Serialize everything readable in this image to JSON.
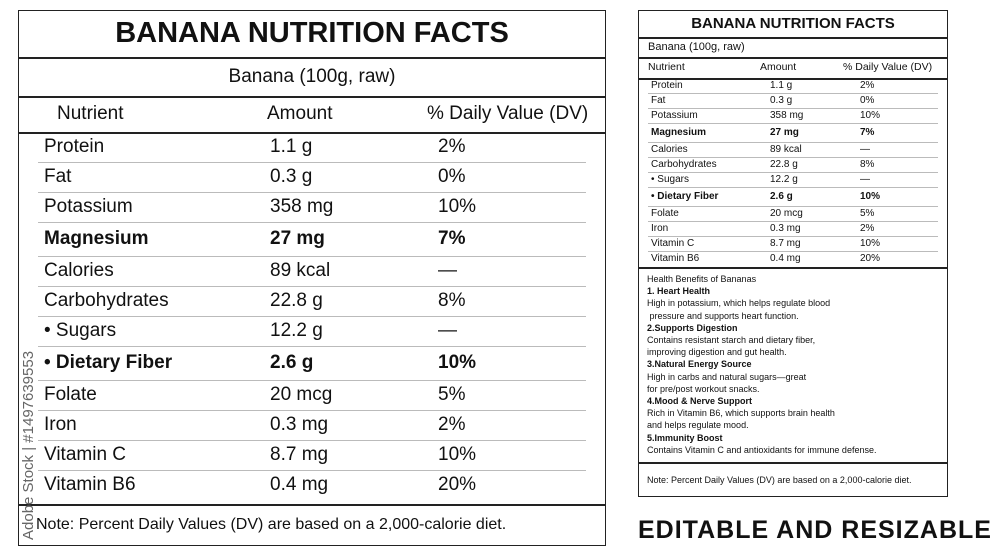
{
  "nutrition": {
    "title": "BANANA NUTRITION FACTS",
    "subtitle": "Banana (100g, raw)",
    "header": [
      "Nutrient",
      "Amount",
      "% Daily Value (DV)"
    ],
    "rows": [
      {
        "nutrient": "Protein",
        "amount": "1.1 g",
        "dv": "2%"
      },
      {
        "nutrient": "Fat",
        "amount": "0.3 g",
        "dv": "0%"
      },
      {
        "nutrient": "Potassium",
        "amount": "358 mg",
        "dv": "10%"
      },
      {
        "nutrient": "Magnesium",
        "amount": "27 mg",
        "dv": "7%",
        "bold": true
      },
      {
        "nutrient": "Calories",
        "amount": "89 kcal",
        "dv": "—"
      },
      {
        "nutrient": "Carbohydrates",
        "amount": "22.8 g",
        "dv": "8%"
      },
      {
        "nutrient": "• Sugars",
        "amount": "12.2 g",
        "dv": "—"
      },
      {
        "nutrient": "• Dietary Fiber",
        "amount": "2.6 g",
        "dv": "10%",
        "bold": true
      },
      {
        "nutrient": "Folate",
        "amount": "20 mcg",
        "dv": "5%"
      },
      {
        "nutrient": "Iron",
        "amount": "0.3 mg",
        "dv": "2%"
      },
      {
        "nutrient": "Vitamin C",
        "amount": "8.7 mg",
        "dv": "10%"
      },
      {
        "nutrient": "Vitamin B6",
        "amount": "0.4 mg",
        "dv": "20%"
      }
    ],
    "note": "Note: Percent Daily Values (DV) are based on a 2,000-calorie diet."
  },
  "benefits": {
    "title": "Health Benefits of Bananas",
    "items": [
      {
        "heading": "1. Heart Health",
        "text": [
          "High in potassium, which helps regulate blood",
          " pressure and supports heart function."
        ]
      },
      {
        "heading": "2.Supports Digestion",
        "text": [
          "Contains resistant starch and dietary fiber,",
          "improving digestion and gut health."
        ]
      },
      {
        "heading": "3.Natural Energy Source",
        "text": [
          "High in carbs and natural sugars—great",
          "for pre/post workout snacks."
        ]
      },
      {
        "heading": "4.Mood & Nerve Support",
        "text": [
          "Rich in Vitamin B6, which supports brain health",
          "and helps regulate mood."
        ]
      },
      {
        "heading": "5.Immunity Boost",
        "text": [
          "Contains Vitamin C and antioxidants for immune defense."
        ]
      }
    ]
  },
  "caption": "EDITABLE AND RESIZABLE",
  "watermark": "Adobe Stock | #1497639553"
}
